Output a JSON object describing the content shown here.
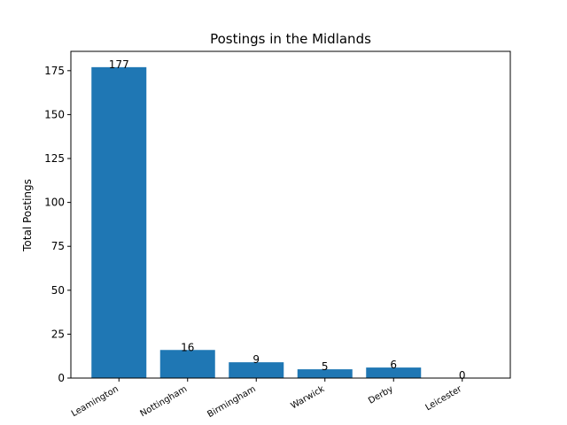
{
  "chart_data": {
    "type": "bar",
    "title": "Postings in the Midlands",
    "xlabel": "",
    "ylabel": "Total Postings",
    "categories": [
      "Leamington",
      "Nottingham",
      "Birmingham",
      "Warwick",
      "Derby",
      "Leicester"
    ],
    "values": [
      177,
      16,
      9,
      5,
      6,
      0
    ],
    "ylim": [
      0,
      186
    ],
    "yticks": [
      0,
      25,
      50,
      75,
      100,
      125,
      150,
      175
    ],
    "bar_color": "#1f77b4",
    "grid": false,
    "data_labels": true
  }
}
